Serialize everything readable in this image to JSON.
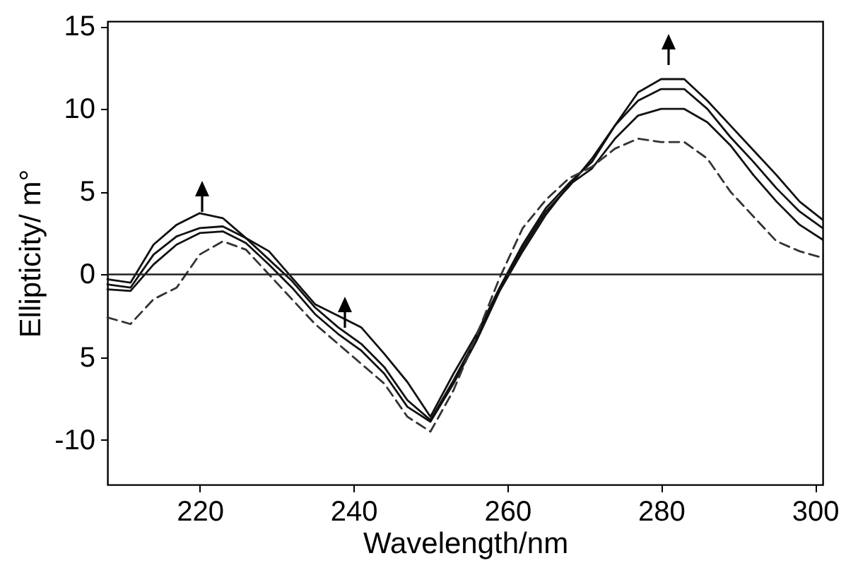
{
  "chart_data": {
    "type": "line",
    "xlabel": "Wavelength/nm",
    "ylabel": "Ellipticity/ m°",
    "x": [
      208,
      211,
      214,
      217,
      220,
      223,
      226,
      229,
      232,
      235,
      238,
      241,
      244,
      247,
      250,
      253,
      256,
      259,
      262,
      265,
      268,
      271,
      274,
      277,
      280,
      283,
      286,
      289,
      292,
      295,
      298,
      301
    ],
    "series": [
      {
        "color": "#111111",
        "line_style": "solid",
        "values": [
          -0.3,
          -0.5,
          1.8,
          3.0,
          3.7,
          3.4,
          2.2,
          1.4,
          -0.2,
          -1.8,
          -2.5,
          -3.2,
          -4.8,
          -6.5,
          -8.6,
          -6.0,
          -3.6,
          -0.8,
          1.8,
          4.0,
          5.5,
          6.8,
          9.0,
          11.0,
          11.8,
          11.8,
          10.5,
          9.0,
          7.5,
          6.0,
          4.4,
          3.3
        ]
      },
      {
        "color": "#111111",
        "line_style": "solid",
        "values": [
          -0.6,
          -0.8,
          1.2,
          2.3,
          2.8,
          2.9,
          2.2,
          0.9,
          -0.4,
          -2.0,
          -3.2,
          -4.2,
          -5.6,
          -7.6,
          -8.8,
          -6.4,
          -3.8,
          -0.9,
          1.6,
          3.8,
          5.3,
          7.0,
          9.0,
          10.5,
          11.2,
          11.2,
          10.0,
          8.3,
          6.8,
          5.2,
          3.8,
          2.8
        ]
      },
      {
        "color": "#111111",
        "line_style": "solid",
        "values": [
          -0.9,
          -1.0,
          0.6,
          1.8,
          2.5,
          2.6,
          1.9,
          0.6,
          -0.8,
          -2.4,
          -3.6,
          -4.6,
          -6.0,
          -8.0,
          -8.9,
          -6.6,
          -4.0,
          -1.0,
          1.4,
          3.6,
          5.4,
          6.4,
          8.2,
          9.6,
          10.0,
          10.0,
          9.2,
          7.8,
          6.0,
          4.4,
          3.0,
          2.1
        ]
      },
      {
        "color": "#333333",
        "line_style": "dashed",
        "values": [
          -2.6,
          -3.0,
          -1.5,
          -0.8,
          1.2,
          2.0,
          1.5,
          0.0,
          -1.5,
          -3.0,
          -4.2,
          -5.4,
          -6.6,
          -8.6,
          -9.5,
          -7.0,
          -3.7,
          -0.2,
          2.8,
          4.5,
          5.8,
          6.5,
          7.6,
          8.2,
          8.0,
          8.0,
          7.0,
          5.0,
          3.5,
          2.0,
          1.4,
          1.0
        ]
      }
    ],
    "xlim": [
      208,
      301
    ],
    "xticks": [
      220,
      240,
      260,
      280,
      300
    ],
    "ylim": [
      -12.7,
      15.3
    ],
    "yticks": [
      15,
      10,
      5,
      0,
      {
        "value": -5,
        "label": "5"
      },
      -10
    ],
    "ref_lines": [
      {
        "axis": "y",
        "value": 0,
        "color": "#222222"
      }
    ],
    "grid": false
  }
}
